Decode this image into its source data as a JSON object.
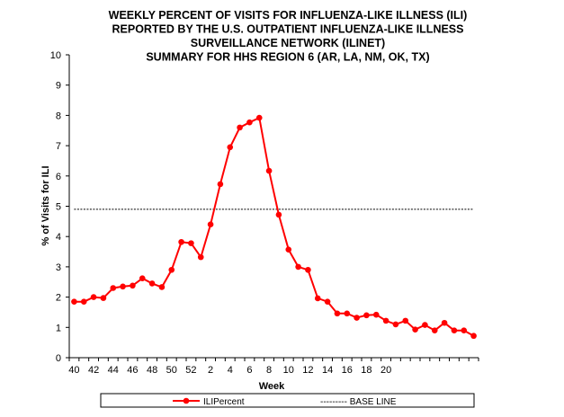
{
  "chart_data": {
    "type": "line",
    "title_lines": [
      "WEEKLY PERCENT  OF VISITS FOR INFLUENZA-LIKE  ILLNESS (ILI)",
      "REPORTED  BY THE U.S. OUTPATIENT  INFLUENZA-LIKE  ILLNESS",
      "SURVEILLANCE NETWORK (ILINET)",
      "SUMMARY FOR HHS REGION 6 (AR,  LA, NM,  OK,  TX)"
    ],
    "xlabel": "Week",
    "ylabel": "% of Visits for ILI",
    "ylim": [
      0,
      10
    ],
    "y_ticks": [
      "0",
      "1",
      "2",
      "3",
      "4",
      "5",
      "6",
      "7",
      "8",
      "9",
      "10"
    ],
    "x_tick_labels": [
      "40",
      "42",
      "44",
      "46",
      "48",
      "50",
      "52",
      "2",
      "4",
      "6",
      "8",
      "10",
      "12",
      "14",
      "16",
      "18",
      "20"
    ],
    "grid": false,
    "legend_position": "bottom",
    "series": [
      {
        "name": "ILIPercent",
        "color": "#ff0000",
        "marker": "circle",
        "values": [
          1.85,
          1.85,
          2.0,
          1.97,
          2.3,
          2.35,
          2.38,
          2.62,
          2.45,
          2.33,
          2.9,
          3.82,
          3.78,
          3.32,
          4.4,
          5.73,
          6.95,
          7.6,
          7.77,
          7.92,
          6.17,
          4.72,
          3.57,
          3.0,
          2.9,
          1.96,
          1.85,
          1.46,
          1.46,
          1.32,
          1.4,
          1.42,
          1.22,
          1.1,
          1.22,
          0.93,
          1.08,
          0.9,
          1.15,
          0.9,
          0.9,
          0.72
        ]
      },
      {
        "name": "BASE LINE",
        "color": "#000000",
        "style": "dashed",
        "values": [
          4.9,
          4.9,
          4.9,
          4.9,
          4.9,
          4.9,
          4.9,
          4.9,
          4.9,
          4.9,
          4.9,
          4.9,
          4.9,
          4.9,
          4.9,
          4.9,
          4.9,
          4.9,
          4.9,
          4.9,
          4.9,
          4.9,
          4.9,
          4.9,
          4.9,
          4.9,
          4.9,
          4.9,
          4.9,
          4.9,
          4.9,
          4.9,
          4.9,
          4.9,
          4.9,
          4.9,
          4.9,
          4.9,
          4.9,
          4.9,
          4.9,
          4.9
        ]
      }
    ],
    "legend": [
      {
        "label": "ILIPercent"
      },
      {
        "label": "--------- BASE LINE"
      }
    ]
  }
}
